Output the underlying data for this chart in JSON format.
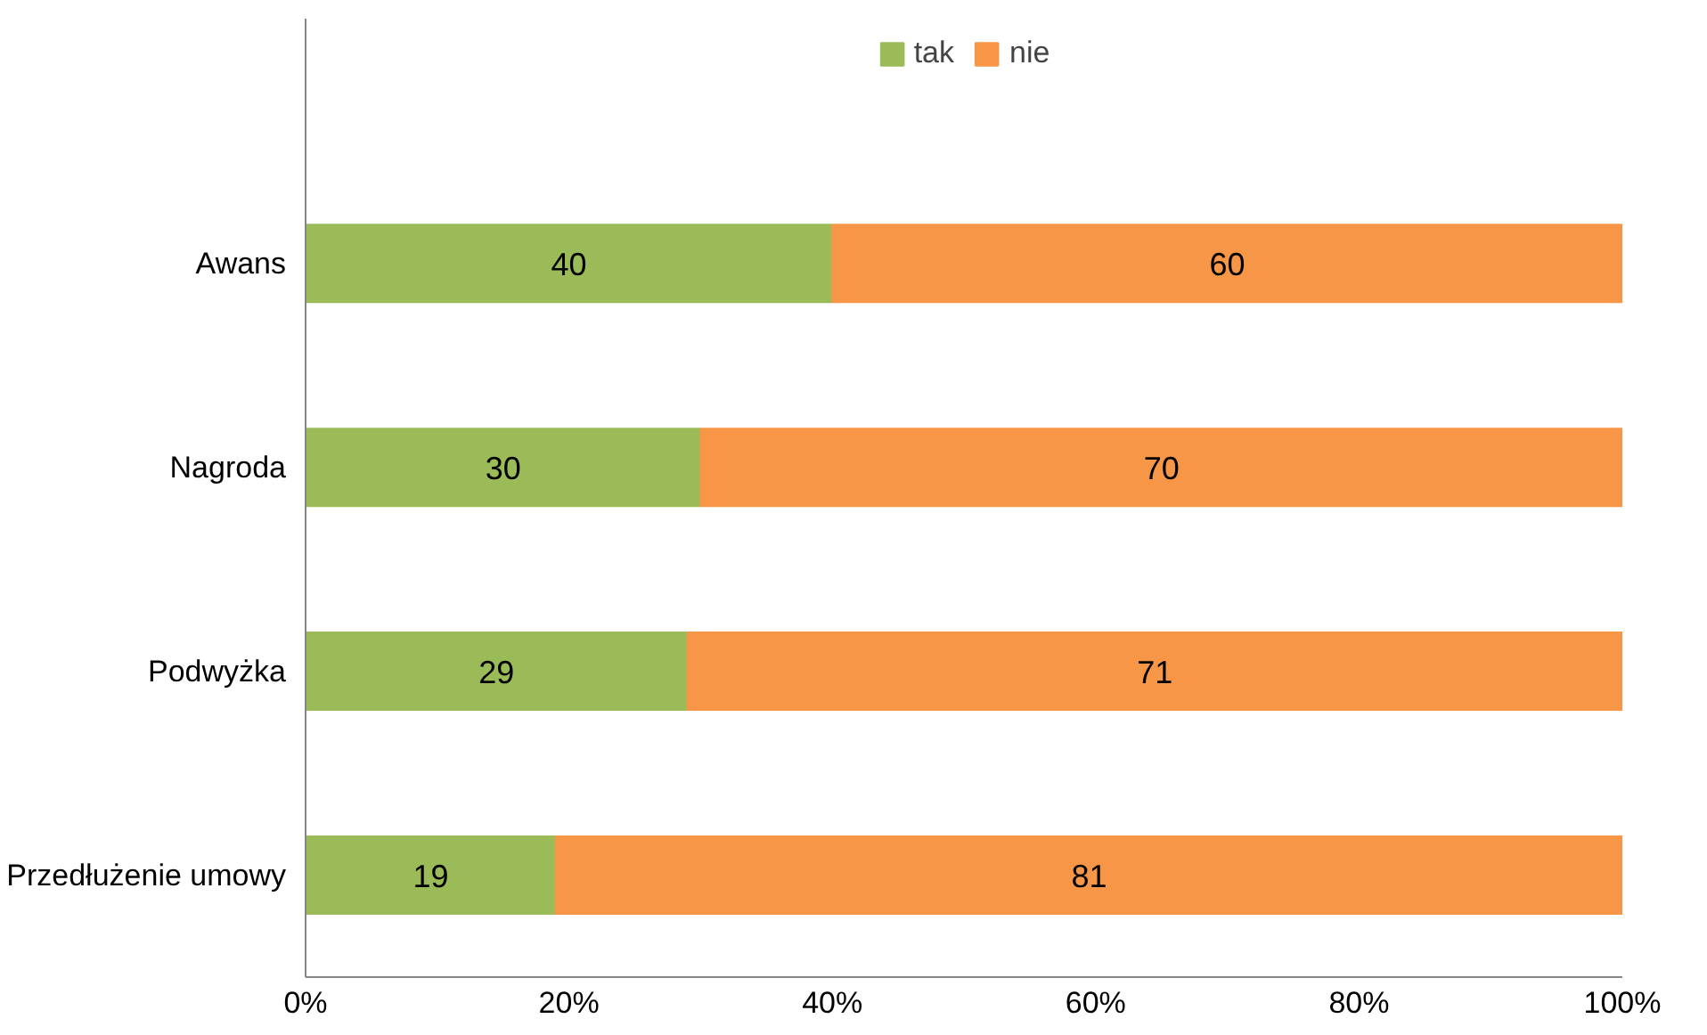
{
  "chart_data": {
    "type": "bar",
    "orientation": "horizontal",
    "stacked": true,
    "categories": [
      "Awans",
      "Nagroda",
      "Podwyżka",
      "Przedłużenie umowy"
    ],
    "series": [
      {
        "name": "tak",
        "color": "#9bbb59",
        "values": [
          40,
          30,
          29,
          19
        ]
      },
      {
        "name": "nie",
        "color": "#f79646",
        "values": [
          60,
          70,
          71,
          81
        ]
      }
    ],
    "xlim": [
      0,
      100
    ],
    "xticks": [
      {
        "value": 0,
        "label": "0%"
      },
      {
        "value": 20,
        "label": "20%"
      },
      {
        "value": 40,
        "label": "40%"
      },
      {
        "value": 60,
        "label": "60%"
      },
      {
        "value": 80,
        "label": "80%"
      },
      {
        "value": 100,
        "label": "100%"
      }
    ],
    "data_labels": true,
    "legend": "top",
    "grid": false
  }
}
